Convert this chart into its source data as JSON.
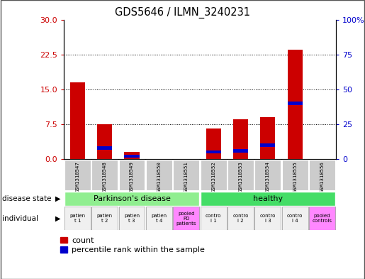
{
  "title": "GDS5646 / ILMN_3240231",
  "samples": [
    "GSM1318547",
    "GSM1318548",
    "GSM1318549",
    "GSM1318550",
    "GSM1318551",
    "GSM1318552",
    "GSM1318553",
    "GSM1318554",
    "GSM1318555",
    "GSM1318556"
  ],
  "count_values": [
    16.5,
    7.5,
    1.5,
    0,
    0,
    6.5,
    8.5,
    9.0,
    23.5,
    0
  ],
  "percentile_values": [
    0,
    8,
    2,
    0,
    0,
    5,
    6,
    10,
    40,
    0
  ],
  "left_ylim": [
    0,
    30
  ],
  "right_ylim": [
    0,
    100
  ],
  "left_yticks": [
    0,
    7.5,
    15,
    22.5,
    30
  ],
  "right_yticks": [
    0,
    25,
    50,
    75,
    100
  ],
  "right_yticklabels": [
    "0",
    "25",
    "50",
    "75",
    "100%"
  ],
  "bar_color_count": "#CC0000",
  "bar_color_percentile": "#0000CC",
  "disease_color_pd": "#90EE90",
  "disease_color_healthy": "#44DD66",
  "ind_colors": [
    "#f0f0f0",
    "#f0f0f0",
    "#f0f0f0",
    "#f0f0f0",
    "#FF88FF",
    "#f0f0f0",
    "#f0f0f0",
    "#f0f0f0",
    "#f0f0f0",
    "#FF88FF"
  ],
  "individual_labels": [
    "patien\nt 1",
    "patien\nt 2",
    "patien\nt 3",
    "patien\nt 4",
    "pooled\nPD\npatients",
    "contro\nl 1",
    "contro\nl 2",
    "contro\nl 3",
    "contro\nl 4",
    "pooled\ncontrols"
  ],
  "fig_bg": "#ffffff",
  "border_color": "#000000"
}
